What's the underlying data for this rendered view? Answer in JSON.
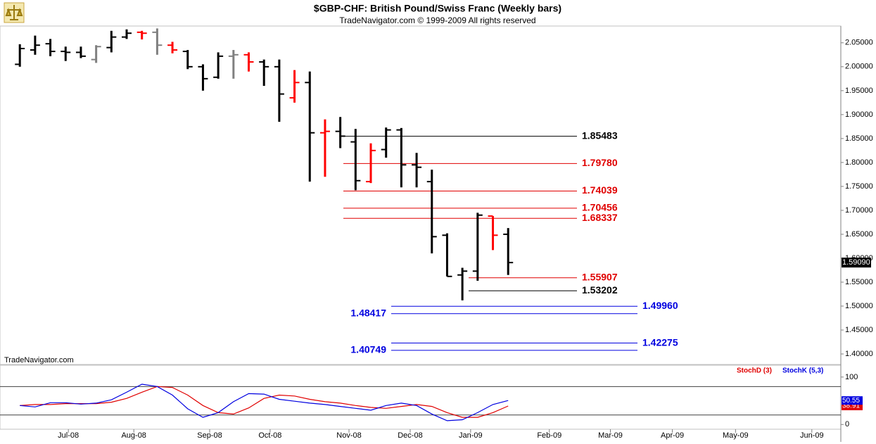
{
  "chart_data": [
    {
      "type": "ohlc",
      "title": "$GBP-CHF:  British Pound/Swiss Franc  (Weekly bars)",
      "subtitle": "TradeNavigator.com © 1999-2009 All rights reserved",
      "watermark": "TradeNavigator.com",
      "x": [
        0,
        1,
        2,
        3,
        4,
        5,
        6,
        7,
        8,
        9,
        10,
        11,
        12,
        13,
        14,
        15,
        16,
        17,
        18,
        19,
        20,
        21,
        22,
        23,
        24,
        25,
        26,
        27,
        28,
        29,
        30,
        31,
        32
      ],
      "open": [
        2.005,
        2.035,
        2.048,
        2.032,
        2.03,
        2.015,
        2.04,
        2.062,
        2.072,
        2.072,
        2.045,
        2.032,
        2.0,
        1.978,
        2.022,
        2.025,
        2.01,
        2.0,
        1.935,
        1.967,
        1.862,
        1.865,
        1.843,
        1.76,
        1.827,
        1.868,
        1.795,
        1.76,
        1.648,
        1.565,
        1.573,
        1.688,
        1.65
      ],
      "high": [
        2.047,
        2.065,
        2.058,
        2.042,
        2.042,
        2.045,
        2.075,
        2.078,
        2.075,
        2.08,
        2.052,
        2.035,
        2.005,
        2.03,
        2.035,
        2.03,
        2.015,
        2.015,
        1.993,
        1.99,
        1.89,
        1.895,
        1.87,
        1.84,
        1.873,
        1.872,
        1.82,
        1.785,
        1.652,
        1.58,
        1.695,
        1.688,
        1.663
      ],
      "low": [
        2.0,
        2.025,
        2.022,
        2.012,
        2.018,
        2.008,
        2.03,
        2.058,
        2.057,
        2.025,
        2.028,
        1.995,
        1.95,
        1.975,
        1.975,
        1.99,
        1.96,
        1.885,
        1.925,
        1.76,
        1.77,
        1.83,
        1.742,
        1.757,
        1.81,
        1.748,
        1.748,
        1.61,
        1.562,
        1.512,
        1.553,
        1.617,
        1.565
      ],
      "close": [
        2.038,
        2.045,
        2.032,
        2.03,
        2.022,
        2.042,
        2.062,
        2.07,
        2.07,
        2.045,
        2.035,
        2.0,
        1.975,
        2.022,
        2.025,
        2.01,
        2.0,
        1.943,
        1.967,
        1.862,
        1.865,
        1.855,
        1.762,
        1.825,
        1.868,
        1.795,
        1.79,
        1.645,
        1.562,
        1.573,
        1.69,
        1.648,
        1.5909
      ],
      "colors": [
        "#000000",
        "#000000",
        "#000000",
        "#000000",
        "#000000",
        "#808080",
        "#000000",
        "#000000",
        "#ff0000",
        "#808080",
        "#ff0000",
        "#000000",
        "#000000",
        "#000000",
        "#808080",
        "#ff0000",
        "#000000",
        "#000000",
        "#ff0000",
        "#000000",
        "#ff0000",
        "#000000",
        "#000000",
        "#ff0000",
        "#000000",
        "#000000",
        "#000000",
        "#000000",
        "#000000",
        "#000000",
        "#000000",
        "#ff0000",
        "#000000"
      ],
      "last_price": {
        "value": 1.5909,
        "label": "1.59090"
      },
      "ylim": [
        1.378,
        2.085
      ],
      "yticks": [
        {
          "value": 1.4,
          "label": "1.40000"
        },
        {
          "value": 1.45,
          "label": "1.45000"
        },
        {
          "value": 1.5,
          "label": "1.50000"
        },
        {
          "value": 1.55,
          "label": "1.55000"
        },
        {
          "value": 1.6,
          "label": "1.60000"
        },
        {
          "value": 1.65,
          "label": "1.65000"
        },
        {
          "value": 1.7,
          "label": "1.70000"
        },
        {
          "value": 1.75,
          "label": "1.75000"
        },
        {
          "value": 1.8,
          "label": "1.80000"
        },
        {
          "value": 1.85,
          "label": "1.85000"
        },
        {
          "value": 1.9,
          "label": "1.90000"
        },
        {
          "value": 1.95,
          "label": "1.95000"
        },
        {
          "value": 2.0,
          "label": "2.00000"
        },
        {
          "value": 2.05,
          "label": "2.05000"
        }
      ],
      "xlim": [
        -1.3,
        53.8
      ],
      "xticks": [
        {
          "value": 3.18,
          "label": "Jul-08"
        },
        {
          "value": 7.47,
          "label": "Aug-08"
        },
        {
          "value": 12.44,
          "label": "Sep-08"
        },
        {
          "value": 16.4,
          "label": "Oct-08"
        },
        {
          "value": 21.57,
          "label": "Nov-08"
        },
        {
          "value": 25.58,
          "label": "Dec-08"
        },
        {
          "value": 29.54,
          "label": "Jan-09"
        },
        {
          "value": 34.7,
          "label": "Feb-09"
        },
        {
          "value": 38.7,
          "label": "Mar-09"
        },
        {
          "value": 42.76,
          "label": "Apr-09"
        },
        {
          "value": 46.9,
          "label": "May-09"
        },
        {
          "value": 51.9,
          "label": "Jun-09"
        }
      ],
      "levels": [
        {
          "value": 1.85483,
          "label": "1.85483",
          "color": "#000000"
        },
        {
          "value": 1.7978,
          "label": "1.79780",
          "color": "#e00000"
        },
        {
          "value": 1.74039,
          "label": "1.74039",
          "color": "#e00000"
        },
        {
          "value": 1.70456,
          "label": "1.70456",
          "color": "#e00000"
        },
        {
          "value": 1.68337,
          "label": "1.68337",
          "color": "#e00000"
        },
        {
          "value": 1.55907,
          "label": "1.55907",
          "color": "#e00000"
        },
        {
          "value": 1.53202,
          "label": "1.53202",
          "color": "#000000"
        },
        {
          "value": 1.4996,
          "label": "1.49960",
          "color": "#0000e0"
        },
        {
          "value": 1.48417,
          "label": "1.48417",
          "color": "#0000e0"
        },
        {
          "value": 1.42275,
          "label": "1.42275",
          "color": "#0000e0"
        },
        {
          "value": 1.40749,
          "label": "1.40749",
          "color": "#0000e0"
        }
      ]
    },
    {
      "type": "line",
      "ylim": [
        -10,
        125
      ],
      "yticks": [
        0,
        100
      ],
      "levels": [
        20,
        80
      ],
      "series": [
        {
          "name": "StochD (3)",
          "color": "#e00000",
          "values": [
            40,
            42,
            42,
            44,
            44,
            44,
            47,
            55,
            68,
            80,
            78,
            62,
            40,
            25,
            22,
            35,
            55,
            62,
            60,
            53,
            48,
            45,
            40,
            36,
            34,
            38,
            42,
            38,
            25,
            15,
            15,
            25,
            38.91
          ],
          "last_label": "38.91"
        },
        {
          "name": "StochK (5,3)",
          "color": "#0000e0",
          "values": [
            40,
            37,
            46,
            46,
            43,
            45,
            52,
            68,
            85,
            80,
            62,
            33,
            15,
            25,
            48,
            65,
            64,
            53,
            49,
            45,
            42,
            38,
            34,
            30,
            40,
            45,
            40,
            22,
            8,
            10,
            25,
            42,
            50.55
          ],
          "last_label": "50.55"
        }
      ]
    }
  ]
}
